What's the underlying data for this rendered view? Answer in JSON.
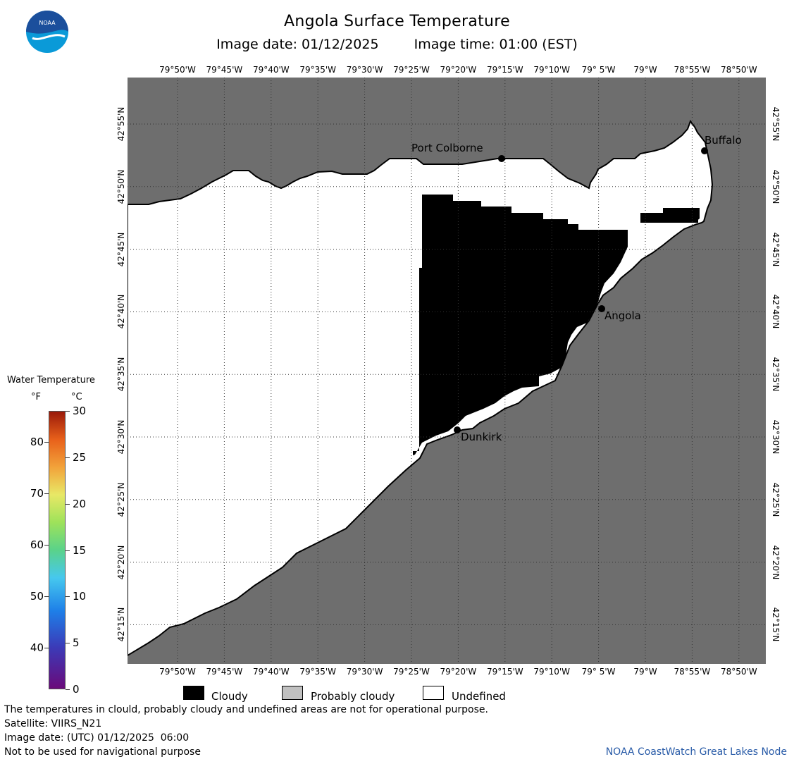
{
  "header": {
    "title": "Angola Surface Temperature",
    "image_date": "Image date: 01/12/2025",
    "image_time": "Image time: 01:00 (EST)"
  },
  "logo": {
    "name": "NOAA",
    "colors": [
      "#2a6fc4",
      "#0a9ad8",
      "#ffffff"
    ]
  },
  "map": {
    "longitude_labels": [
      "79°50'W",
      "79°45'W",
      "79°40'W",
      "79°35'W",
      "79°30'W",
      "79°25'W",
      "79°20'W",
      "79°15'W",
      "79°10'W",
      "79° 5'W",
      "79°W",
      "78°55'W",
      "78°50'W"
    ],
    "latitude_labels": [
      "42°55'N",
      "42°50'N",
      "42°45'N",
      "42°40'N",
      "42°35'N",
      "42°30'N",
      "42°25'N",
      "42°20'N",
      "42°15'N"
    ],
    "cities": {
      "port_colborne": "Port Colborne",
      "buffalo": "Buffalo",
      "angola": "Angola",
      "dunkirk": "Dunkirk"
    },
    "colors": {
      "land": "#6e6e6e",
      "water_undefined": "#ffffff",
      "cloudy": "#000000",
      "probably_cloudy": "#c0c0c0"
    }
  },
  "legend": {
    "title": "Water Temperature",
    "unit_f": "°F",
    "unit_c": "°C",
    "fahrenheit_ticks": [
      "80",
      "70",
      "60",
      "50",
      "40"
    ],
    "celsius_ticks": [
      "30",
      "25",
      "20",
      "15",
      "10",
      "5",
      "0"
    ]
  },
  "key": {
    "cloudy": "Cloudy",
    "probably_cloudy": "Probably cloudy",
    "undefined": "Undefined"
  },
  "footer": {
    "disclaimer": "The temperatures in clould, probably cloudy and undefined areas are not for operational purpose.",
    "satellite": "Satellite: VIIRS_N21",
    "utc_date": "Image date: (UTC) 01/12/2025  06:00",
    "navigation": "Not to be used for navigational purpose",
    "credit": "NOAA CoastWatch Great Lakes Node"
  }
}
